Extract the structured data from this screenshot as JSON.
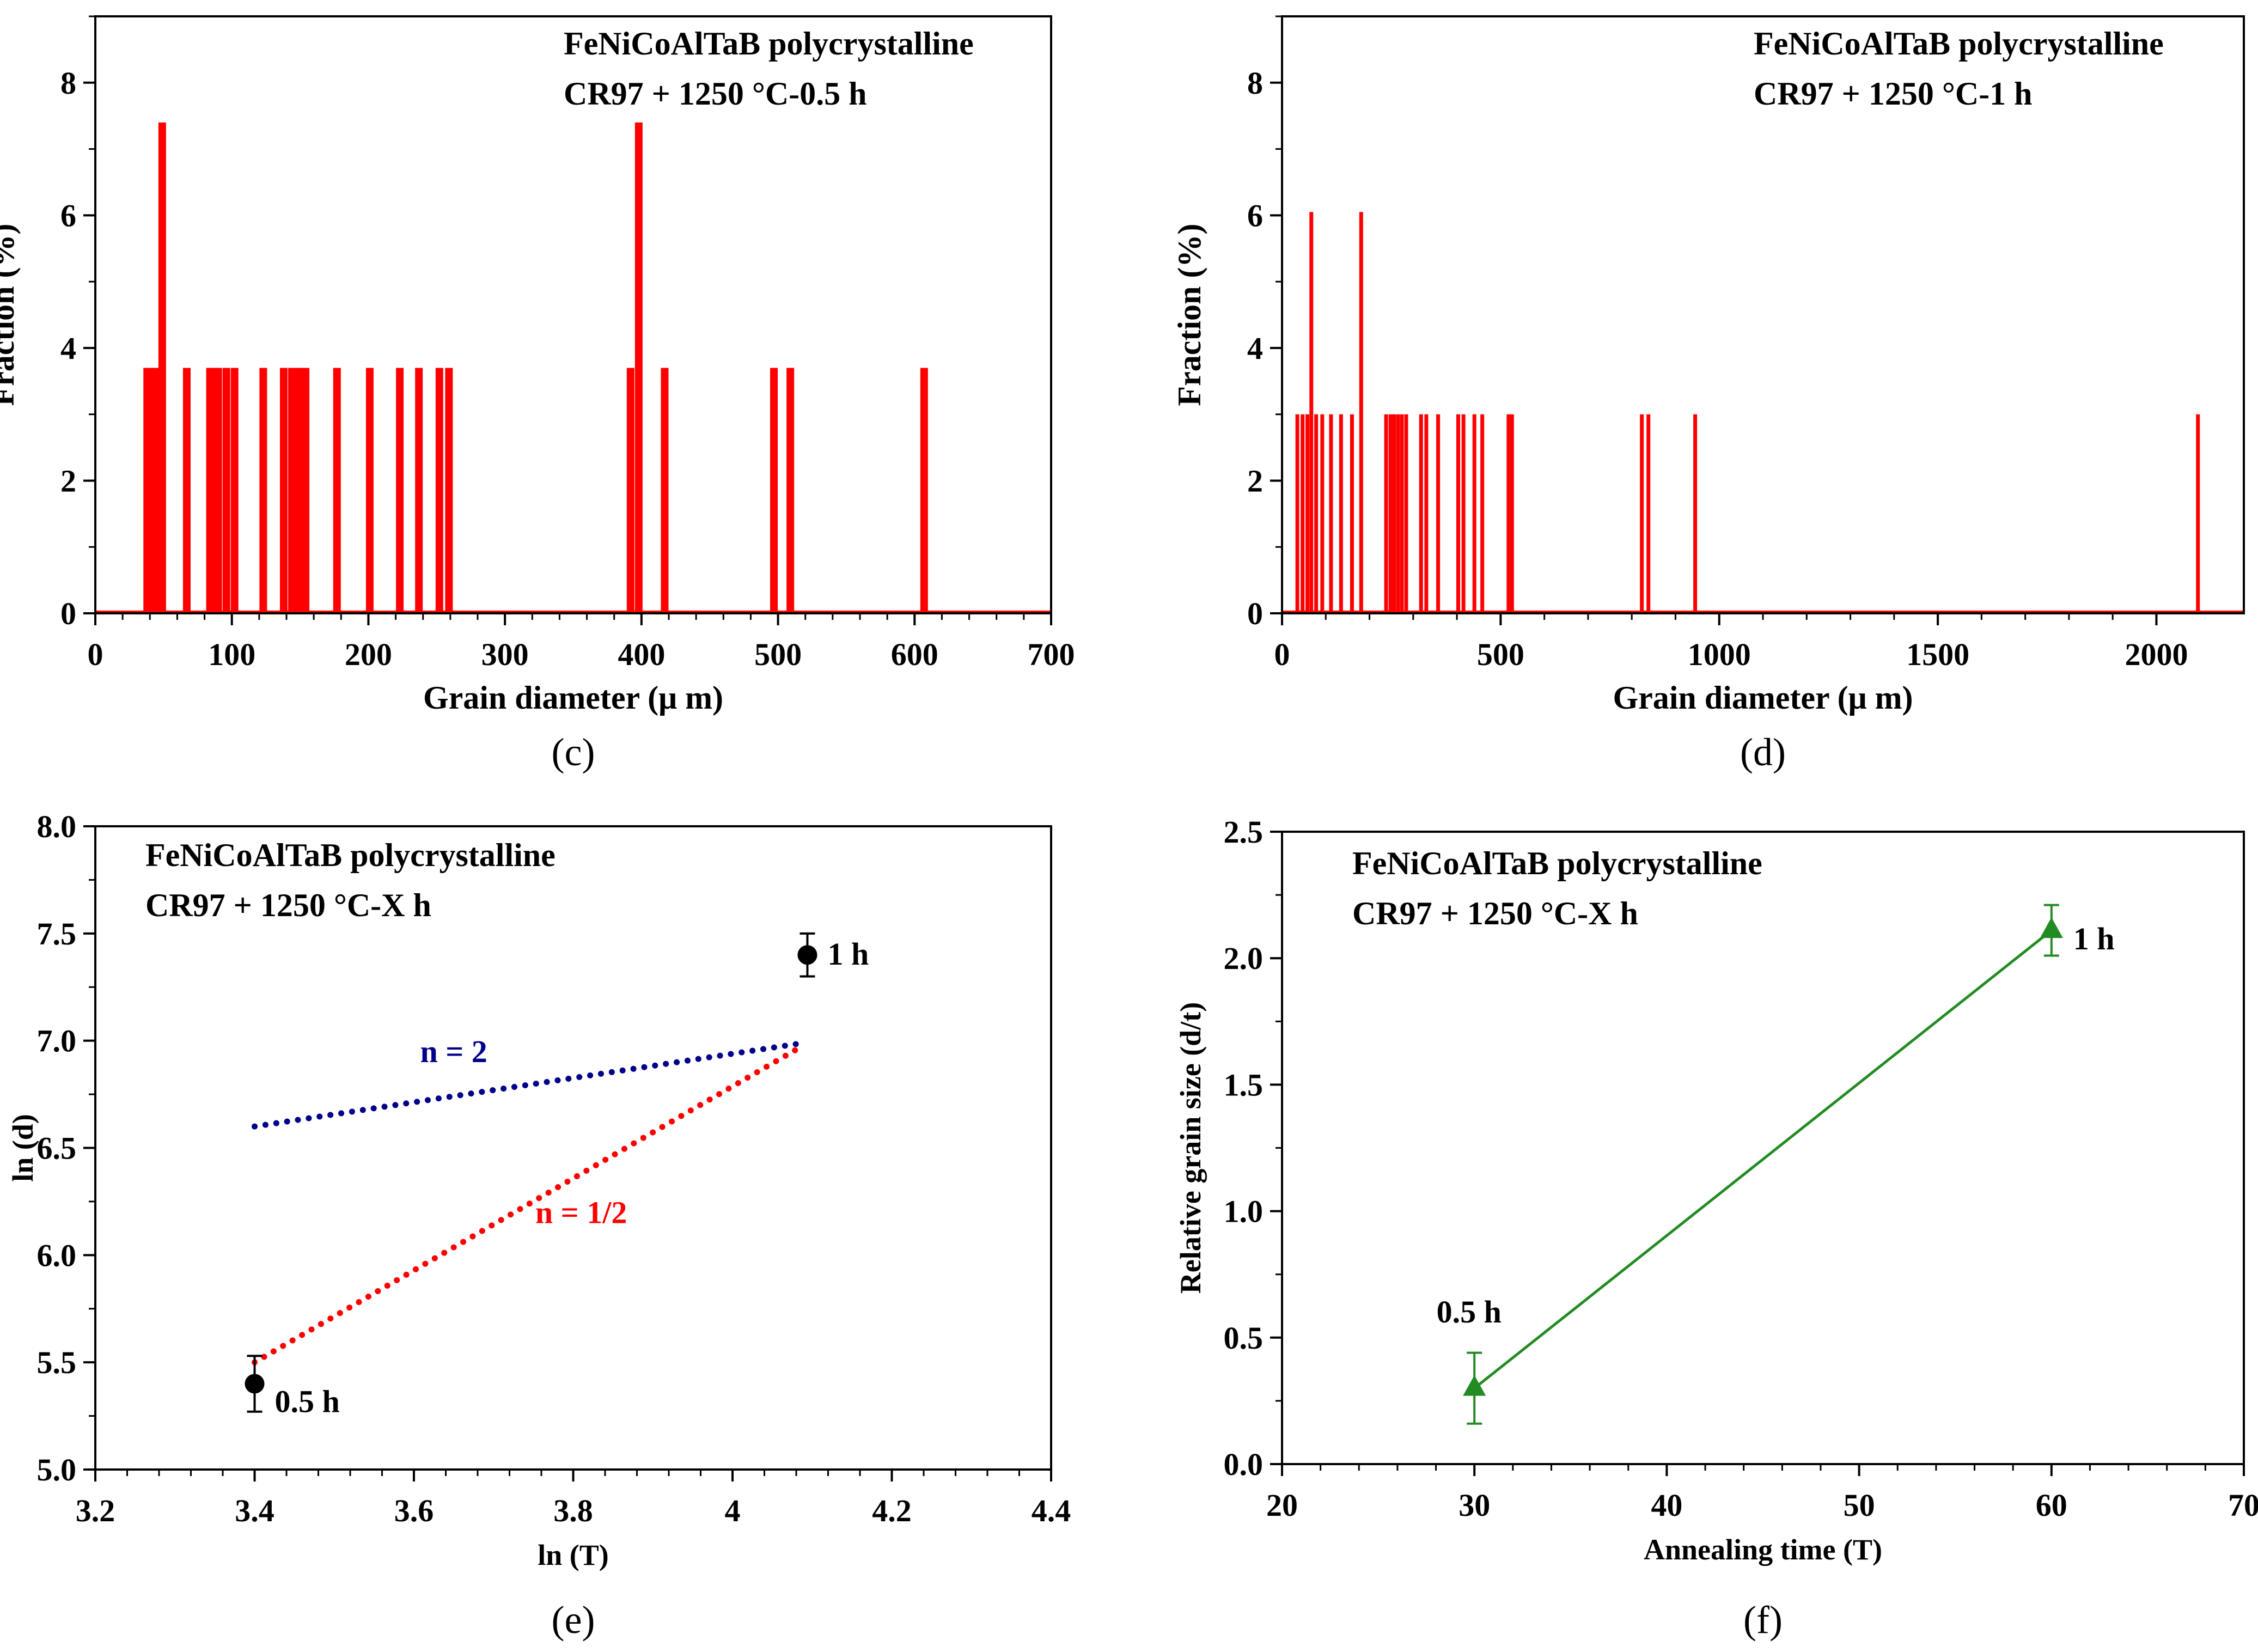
{
  "chart_data": [
    {
      "type": "bar",
      "panel_label": "(c)",
      "annotation_lines": [
        "FeNiCoAlTaB polycrystalline",
        "CR97 + 1250 °C-0.5 h"
      ],
      "xlabel": "Grain diameter (μ m)",
      "ylabel": "Fraction (%)",
      "xlim": [
        0,
        700
      ],
      "ylim": [
        0,
        9
      ],
      "xticks": [
        0,
        100,
        200,
        300,
        400,
        500,
        600,
        700
      ],
      "yticks": [
        0,
        2,
        4,
        6,
        8
      ],
      "grid": false,
      "bar_color": "#ff0000",
      "x": [
        38,
        41,
        44,
        49,
        67,
        84,
        87,
        90,
        96,
        102,
        123,
        138,
        144,
        149,
        154,
        177,
        201,
        223,
        237,
        252,
        259,
        392,
        398,
        417,
        497,
        509,
        607
      ],
      "values": [
        3.7,
        3.7,
        3.7,
        7.4,
        3.7,
        3.7,
        3.7,
        3.7,
        3.7,
        3.7,
        3.7,
        3.7,
        3.7,
        3.7,
        3.7,
        3.7,
        3.7,
        3.7,
        3.7,
        3.7,
        3.7,
        3.7,
        7.4,
        3.7,
        3.7,
        3.7,
        3.7
      ]
    },
    {
      "type": "bar",
      "panel_label": "(d)",
      "annotation_lines": [
        "FeNiCoAlTaB polycrystalline",
        "CR97 + 1250 °C-1 h"
      ],
      "xlabel": "Grain diameter (μ m)",
      "ylabel": "Fraction (%)",
      "xlim": [
        0,
        2200
      ],
      "ylim": [
        0,
        9
      ],
      "xticks": [
        0,
        500,
        1000,
        1500,
        2000
      ],
      "yticks": [
        0,
        2,
        4,
        6,
        8
      ],
      "grid": false,
      "bar_color": "#ff0000",
      "x": [
        35,
        47,
        58,
        67,
        78,
        92,
        112,
        135,
        160,
        181,
        238,
        248,
        256,
        265,
        274,
        284,
        318,
        330,
        357,
        403,
        415,
        440,
        458,
        518,
        526,
        823,
        838,
        945,
        2095
      ],
      "values": [
        3.0,
        3.0,
        3.0,
        6.05,
        3.0,
        3.0,
        3.0,
        3.0,
        3.0,
        6.05,
        3.0,
        3.0,
        3.0,
        3.0,
        3.0,
        3.0,
        3.0,
        3.0,
        3.0,
        3.0,
        3.0,
        3.0,
        3.0,
        3.0,
        3.0,
        3.0,
        3.0,
        3.0,
        3.0
      ]
    },
    {
      "type": "scatter",
      "panel_label": "(e)",
      "annotation_lines": [
        "FeNiCoAlTaB polycrystalline",
        "CR97 + 1250 °C-X h"
      ],
      "xlabel": "ln (T)",
      "ylabel": "ln (d)",
      "xlim": [
        3.2,
        4.4
      ],
      "ylim": [
        5.0,
        8.0
      ],
      "xticks": [
        3.2,
        3.4,
        3.6,
        3.8,
        4.0,
        4.2,
        4.4
      ],
      "yticks": [
        5.0,
        5.5,
        6.0,
        6.5,
        7.0,
        7.5,
        8.0
      ],
      "ytick_labels": [
        "5.0",
        "5.5",
        "6.0",
        "6.5",
        "7.0",
        "7.5",
        "8.0"
      ],
      "grid": false,
      "points": [
        {
          "x": 3.4,
          "y": 5.4,
          "err": 0.13,
          "label": "0.5 h"
        },
        {
          "x": 4.094,
          "y": 7.4,
          "err": 0.1,
          "label": "1 h"
        }
      ],
      "lines": [
        {
          "label": "n = 2",
          "color": "#00008b",
          "x": [
            3.4,
            4.09
          ],
          "y": [
            6.6,
            6.99
          ]
        },
        {
          "label": "n = 1/2",
          "color": "#ff0000",
          "x": [
            3.4,
            4.09
          ],
          "y": [
            5.5,
            6.98
          ]
        }
      ]
    },
    {
      "type": "line",
      "panel_label": "(f)",
      "annotation_lines": [
        "FeNiCoAlTaB polycrystalline",
        "CR97 + 1250 °C-X h"
      ],
      "xlabel": "Annealing time (T)",
      "ylabel": "Relative grain size (d/t)",
      "xlim": [
        20,
        70
      ],
      "ylim": [
        0.0,
        2.5
      ],
      "xticks": [
        20,
        30,
        40,
        50,
        60,
        70
      ],
      "yticks": [
        0.0,
        0.5,
        1.0,
        1.5,
        2.0,
        2.5
      ],
      "ytick_labels": [
        "0.0",
        "0.5",
        "1.0",
        "1.5",
        "2.0",
        "2.5"
      ],
      "grid": false,
      "color": "#228b22",
      "x": [
        30,
        60
      ],
      "values": [
        0.3,
        2.11
      ],
      "errors": [
        0.14,
        0.1
      ],
      "point_labels": [
        "0.5 h",
        "1 h"
      ]
    }
  ]
}
